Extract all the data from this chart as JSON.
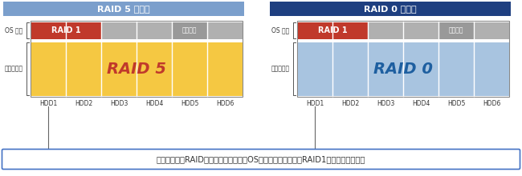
{
  "title_raid5": "RAID 5 設定時",
  "title_raid0": "RAID 0 設定時",
  "title_raid5_color": "#7b9fcc",
  "title_raid0_color": "#1e3f80",
  "hdd_labels": [
    "HDD1",
    "HDD2",
    "HDD3",
    "HDD4",
    "HDD5",
    "HDD6"
  ],
  "os_label": "OS 領域",
  "data_label": "データ領域",
  "raid1_label": "RAID 1",
  "raid5_label": "RAID 5",
  "raid0_label": "RAID 0",
  "unavail_label": "利用不可",
  "footer_text": "データ領域のRAID設定にかかわらず、OS領域については常にRAID1が構成されます。",
  "raid1_color": "#c0392b",
  "gray_color": "#b0b0b0",
  "unavail_color": "#999999",
  "raid5_data_color": "#f5c842",
  "raid5_data_color2": "#e8b820",
  "raid0_data_color": "#a8c4e0",
  "raid0_data_color2": "#7aaad0",
  "raid5_text_color": "#c0392b",
  "raid0_text_color": "#1e5fa0",
  "bg_color": "#ffffff",
  "footer_border": "#4472c4",
  "line_color": "#666666",
  "text_color": "#333333",
  "white": "#ffffff"
}
